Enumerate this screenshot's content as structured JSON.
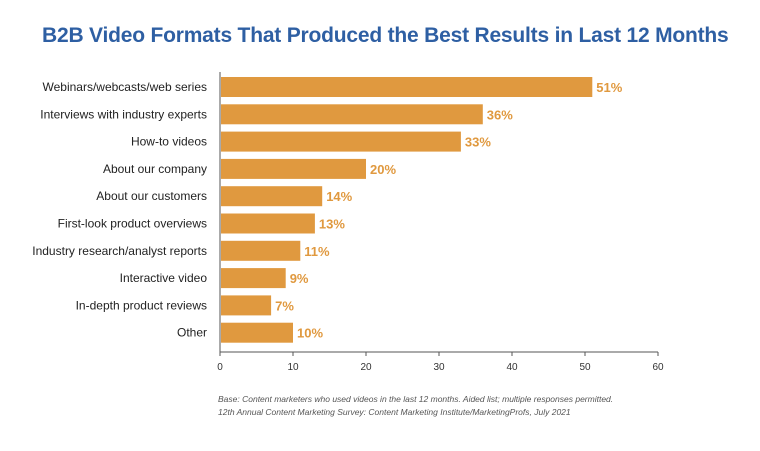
{
  "title": "B2B Video Formats That Produced the Best Results in Last 12 Months",
  "footnotes": {
    "base": "Base: Content marketers who used videos in the last 12 months. Aided list; multiple responses permitted.",
    "source": "12th Annual Content Marketing Survey: Content Marketing Institute/MarketingProfs, July 2021"
  },
  "chart_data": {
    "type": "bar",
    "orientation": "horizontal",
    "categories": [
      "Webinars/webcasts/web series",
      "Interviews with industry experts",
      "How-to videos",
      "About our company",
      "About our customers",
      "First-look product overviews",
      "Industry research/analyst reports",
      "Interactive video",
      "In-depth product reviews",
      "Other"
    ],
    "values": [
      51,
      36,
      33,
      20,
      14,
      13,
      11,
      9,
      7,
      10
    ],
    "value_labels": [
      "51%",
      "36%",
      "33%",
      "20%",
      "14%",
      "13%",
      "11%",
      "9%",
      "7%",
      "10%"
    ],
    "xlim": [
      0,
      60
    ],
    "xticks": [
      0,
      10,
      20,
      30,
      40,
      50,
      60
    ],
    "grid": false,
    "legend": "none",
    "bar_color": "#e0993f",
    "label_color": "#e0993f"
  }
}
